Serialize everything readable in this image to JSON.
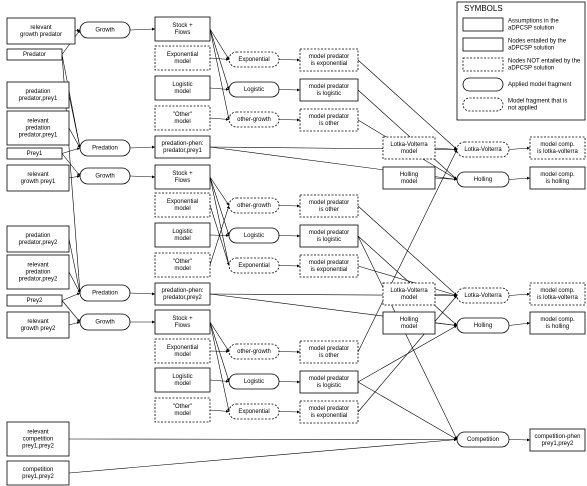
{
  "nodes": [
    {
      "lines": [
        "relevant",
        "growth predator"
      ]
    },
    {
      "lines": [
        "Predator"
      ]
    },
    {
      "lines": [
        "predation",
        "predator,prey1"
      ]
    },
    {
      "lines": [
        "relevant",
        "predation",
        "predator,prey1"
      ]
    },
    {
      "lines": [
        "Prey1"
      ]
    },
    {
      "lines": [
        "relevant",
        "growth prey1"
      ]
    },
    {
      "lines": [
        "predation",
        "predator,prey2"
      ]
    },
    {
      "lines": [
        "relevant",
        "predation",
        "predator,prey2"
      ]
    },
    {
      "lines": [
        "Prey2"
      ]
    },
    {
      "lines": [
        "relevant",
        "growth prey2"
      ]
    },
    {
      "lines": [
        "relevant",
        "competition",
        "prey1,prey2"
      ]
    },
    {
      "lines": [
        "competition",
        "prey1,prey2"
      ]
    },
    {
      "lines": [
        "Growth"
      ]
    },
    {
      "lines": [
        "Predation"
      ]
    },
    {
      "lines": [
        "Growth"
      ]
    },
    {
      "lines": [
        "Predation"
      ]
    },
    {
      "lines": [
        "Growth"
      ]
    },
    {
      "lines": [
        "Stock +",
        "Flows"
      ]
    },
    {
      "lines": [
        "Exponential",
        "model"
      ]
    },
    {
      "lines": [
        "Logistic",
        "model"
      ]
    },
    {
      "lines": [
        "\"Other\"",
        "model"
      ]
    },
    {
      "lines": [
        "predation-phen:",
        "predator,prey1"
      ]
    },
    {
      "lines": [
        "Stock +",
        "Flows"
      ]
    },
    {
      "lines": [
        "Exponential",
        "model"
      ]
    },
    {
      "lines": [
        "Logistic",
        "model"
      ]
    },
    {
      "lines": [
        "\"Other\"",
        "model"
      ]
    },
    {
      "lines": [
        "predation-phen:",
        "predator,prey2"
      ]
    },
    {
      "lines": [
        "Stock +",
        "Flows"
      ]
    },
    {
      "lines": [
        "Exponential",
        "model"
      ]
    },
    {
      "lines": [
        "Logistic",
        "model"
      ]
    },
    {
      "lines": [
        "\"Other\"",
        "model"
      ]
    },
    {
      "lines": [
        "Exponential"
      ]
    },
    {
      "lines": [
        "Logistic"
      ]
    },
    {
      "lines": [
        "other-growth"
      ]
    },
    {
      "lines": [
        "other-growth"
      ]
    },
    {
      "lines": [
        "Logistic"
      ]
    },
    {
      "lines": [
        "Exponential"
      ]
    },
    {
      "lines": [
        "other-growth"
      ]
    },
    {
      "lines": [
        "Logistic"
      ]
    },
    {
      "lines": [
        "Exponential"
      ]
    },
    {
      "lines": [
        "model predator",
        "is exponential"
      ]
    },
    {
      "lines": [
        "model predator",
        "is logistic"
      ]
    },
    {
      "lines": [
        "model predator",
        "is other"
      ]
    },
    {
      "lines": [
        "model predator",
        "is other"
      ]
    },
    {
      "lines": [
        "model predator",
        "is logistic"
      ]
    },
    {
      "lines": [
        "model predator",
        "is exponential"
      ]
    },
    {
      "lines": [
        "model predator",
        "is other"
      ]
    },
    {
      "lines": [
        "model predator",
        "is logistic"
      ]
    },
    {
      "lines": [
        "model predator",
        "is exponential"
      ]
    },
    {
      "lines": [
        "Lotka-Volterra",
        "model"
      ]
    },
    {
      "lines": [
        "Holling",
        "model"
      ]
    },
    {
      "lines": [
        "Lotka-Volterra",
        "model"
      ]
    },
    {
      "lines": [
        "Holling",
        "model"
      ]
    },
    {
      "lines": [
        "Lotka-Volterra"
      ]
    },
    {
      "lines": [
        "Holling"
      ]
    },
    {
      "lines": [
        "Lotka-Volterra"
      ]
    },
    {
      "lines": [
        "Holling"
      ]
    },
    {
      "lines": [
        "Competition"
      ]
    },
    {
      "lines": [
        "model comp.",
        "is lotka-volterra"
      ]
    },
    {
      "lines": [
        "model comp.",
        "is holling"
      ]
    },
    {
      "lines": [
        "model comp.",
        "is lotka-volterra"
      ]
    },
    {
      "lines": [
        "model comp.",
        "is holling"
      ]
    },
    {
      "lines": [
        "competition-phen",
        "prey1,prey2"
      ]
    }
  ],
  "legend": {
    "title": "SYMBOLS",
    "items": [
      {
        "lines": [
          "Assumptions in the",
          "aDPCSP solution"
        ]
      },
      {
        "lines": [
          "Nodes entailed by the",
          "aDPCSP solution"
        ]
      },
      {
        "lines": [
          "Nodes NOT entailed by the",
          "aDPCSP solution"
        ]
      },
      {
        "lines": [
          "Applied model fragment"
        ]
      },
      {
        "lines": [
          "Model fragment that is",
          "not applied"
        ]
      }
    ]
  }
}
